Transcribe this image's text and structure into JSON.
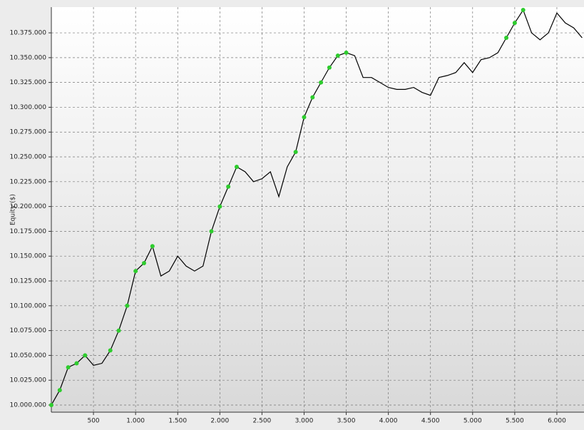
{
  "chart_data": {
    "type": "line",
    "y_label": "Equity ($)",
    "x": [
      0,
      100,
      200,
      300,
      400,
      500,
      600,
      700,
      800,
      900,
      1000,
      1100,
      1200,
      1300,
      1400,
      1500,
      1600,
      1700,
      1800,
      1900,
      2000,
      2100,
      2200,
      2300,
      2400,
      2500,
      2600,
      2700,
      2800,
      2900,
      3000,
      3100,
      3200,
      3300,
      3400,
      3500,
      3600,
      3700,
      3800,
      3900,
      4000,
      4100,
      4200,
      4300,
      4400,
      4500,
      4600,
      4700,
      4800,
      4900,
      5000,
      5100,
      5200,
      5300,
      5400,
      5500,
      5600,
      5700,
      5800,
      5900,
      6000,
      6100,
      6200,
      6300
    ],
    "series": [
      {
        "color": "#000000",
        "values": [
          10000000,
          10015000,
          10038000,
          10042000,
          10050000,
          10040000,
          10042000,
          10055000,
          10075000,
          10100000,
          10135000,
          10143000,
          10160000,
          10130000,
          10135000,
          10150000,
          10140000,
          10135000,
          10140000,
          10175000,
          10200000,
          10220000,
          10240000,
          10235000,
          10225000,
          10228000,
          10235000,
          10210000,
          10240000,
          10255000,
          10290000,
          10310000,
          10325000,
          10340000,
          10352000,
          10355000,
          10352000,
          10330000,
          10330000,
          10325000,
          10320000,
          10318000,
          10318000,
          10320000,
          10315000,
          10312000,
          10330000,
          10332000,
          10335000,
          10345000,
          10335000,
          10348000,
          10350000,
          10355000,
          10370000,
          10385000,
          10398000,
          10375000,
          10368000,
          10375000,
          10395000,
          10385000,
          10380000,
          10370000
        ]
      }
    ],
    "highlight_new_highs": true,
    "highlight_color": "#2ecc2e",
    "xlim": [
      0,
      6322
    ],
    "ylim": [
      9992800,
      10400900
    ],
    "xticks": [
      500,
      {
        "value": 1000,
        "label": "1.000"
      },
      {
        "value": 1500,
        "label": "1.500"
      },
      {
        "value": 2000,
        "label": "2.000"
      },
      {
        "value": 2500,
        "label": "2.500"
      },
      {
        "value": 3000,
        "label": "3.000"
      },
      {
        "value": 3500,
        "label": "3.500"
      },
      {
        "value": 4000,
        "label": "4.000"
      },
      {
        "value": 4500,
        "label": "4.500"
      },
      {
        "value": 5000,
        "label": "5.000"
      },
      {
        "value": 5500,
        "label": "5.500"
      },
      {
        "value": 6000,
        "label": "6.000"
      }
    ],
    "yticks": [
      {
        "value": 10000000,
        "label": "10.000.000"
      },
      {
        "value": 10025000,
        "label": "10.025.000"
      },
      {
        "value": 10050000,
        "label": "10.050.000"
      },
      {
        "value": 10075000,
        "label": "10.075.000"
      },
      {
        "value": 10100000,
        "label": "10.100.000"
      },
      {
        "value": 10125000,
        "label": "10.125.000"
      },
      {
        "value": 10150000,
        "label": "10.150.000"
      },
      {
        "value": 10175000,
        "label": "10.175.000"
      },
      {
        "value": 10200000,
        "label": "10.200.000"
      },
      {
        "value": 10225000,
        "label": "10.225.000"
      },
      {
        "value": 10250000,
        "label": "10.250.000"
      },
      {
        "value": 10275000,
        "label": "10.275.000"
      },
      {
        "value": 10300000,
        "label": "10.300.000"
      },
      {
        "value": 10325000,
        "label": "10.325.000"
      },
      {
        "value": 10350000,
        "label": "10.350.000"
      },
      {
        "value": 10375000,
        "label": "10.375.000"
      }
    ],
    "grid": true
  }
}
